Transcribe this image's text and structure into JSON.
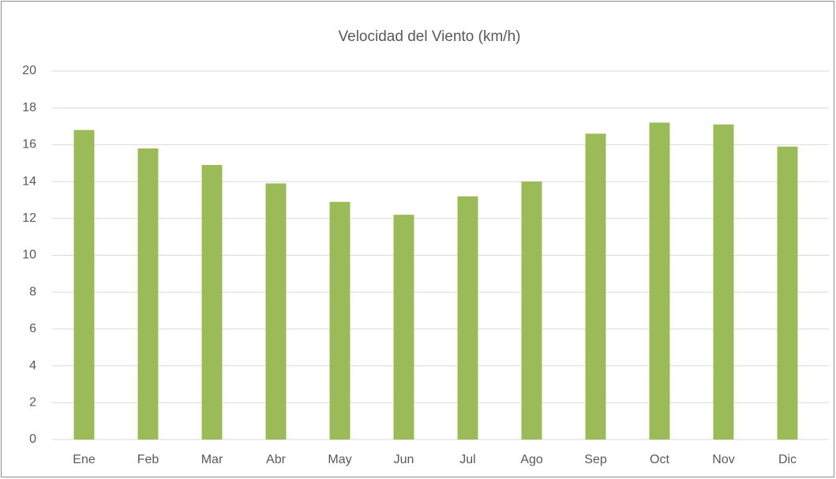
{
  "chart_data": {
    "type": "bar",
    "title": "Velocidad del Viento (km/h)",
    "categories": [
      "Ene",
      "Feb",
      "Mar",
      "Abr",
      "May",
      "Jun",
      "Jul",
      "Ago",
      "Sep",
      "Oct",
      "Nov",
      "Dic"
    ],
    "values": [
      16.8,
      15.8,
      14.9,
      13.9,
      12.9,
      12.2,
      13.2,
      14.0,
      16.6,
      17.2,
      17.1,
      15.9
    ],
    "color": "#9bbb59",
    "ylim": [
      0,
      20
    ],
    "yticks": [
      0,
      2,
      4,
      6,
      8,
      10,
      12,
      14,
      16,
      18,
      20
    ],
    "grid": true
  }
}
